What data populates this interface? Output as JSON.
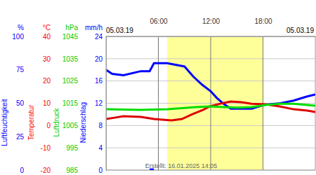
{
  "chart_data": {
    "type": "line",
    "start_date": "05.03.19",
    "end_date": "05.03.19",
    "footer": "Erstellt: 16.01.2025 14:05",
    "xlim": [
      0,
      24
    ],
    "xticks": [
      {
        "value": 6,
        "label": "06:00"
      },
      {
        "value": 12,
        "label": "12:00"
      },
      {
        "value": 18,
        "label": "18:00"
      }
    ],
    "daylight": [
      7,
      18
    ],
    "grid": true,
    "y_axes": [
      {
        "unit": "%",
        "label": "Luftfeuchtigkeit",
        "color": "#0000ff",
        "lim": [
          0,
          100
        ],
        "ticks": [
          0,
          25,
          50,
          75,
          100
        ]
      },
      {
        "unit": "°C",
        "label": "Temperatur",
        "color": "#ff0000",
        "lim": [
          -20,
          40
        ],
        "ticks": [
          -20,
          -10,
          0,
          10,
          20,
          30,
          40
        ]
      },
      {
        "unit": "hPa",
        "label": "Luftdruck",
        "color": "#00cc00",
        "lim": [
          985,
          1045
        ],
        "ticks": [
          985,
          995,
          1005,
          1015,
          1025,
          1035,
          1045
        ]
      },
      {
        "unit": "mm/h",
        "label": "Niederschlag",
        "color": "#0000ff",
        "lim": [
          0,
          24
        ],
        "ticks": [
          0,
          4,
          8,
          12,
          16,
          20,
          24
        ]
      }
    ],
    "series": [
      {
        "type": "line",
        "axis": 0,
        "color": "#0000ff",
        "x": [
          0,
          0.7,
          2,
          4,
          5,
          5.5,
          7,
          9,
          10,
          11,
          12,
          12.7,
          13.4,
          14.3,
          16.7,
          18.3,
          20,
          21.5,
          23,
          24
        ],
        "values": [
          75,
          72,
          71,
          74,
          74,
          80,
          80,
          77.5,
          70,
          64,
          59,
          54,
          50,
          46,
          46,
          49,
          50,
          52,
          55,
          56.5
        ]
      },
      {
        "type": "line",
        "axis": 1,
        "color": "#dd0000",
        "x": [
          0,
          1.1,
          2,
          4,
          5.5,
          7.5,
          8.7,
          9.9,
          11.1,
          11.9,
          13.1,
          14.3,
          15.5,
          16.7,
          18.3,
          19.9,
          21.5,
          23.1,
          24
        ],
        "values": [
          2.9,
          3.6,
          4.2,
          3.9,
          2.9,
          2.3,
          2.9,
          5.1,
          7.0,
          8.6,
          9.8,
          10.8,
          10.5,
          9.8,
          9.5,
          8.6,
          7.3,
          6.7,
          6.1
        ]
      },
      {
        "type": "line",
        "axis": 2,
        "color": "#00dd00",
        "x": [
          0,
          3.9,
          7.1,
          10.3,
          11.9,
          13.5,
          15.1,
          16.7,
          18.3,
          19.9,
          21.5,
          23.1,
          24
        ],
        "values": [
          1012.3,
          1012.0,
          1012.3,
          1013.3,
          1013.6,
          1013.3,
          1013.0,
          1013.3,
          1014.2,
          1014.8,
          1014.8,
          1014.2,
          1013.9
        ]
      },
      {
        "type": "bar",
        "axis": 3,
        "color": "#0000ff",
        "x": [
          5.25
        ],
        "values": [
          0.3
        ]
      }
    ]
  }
}
